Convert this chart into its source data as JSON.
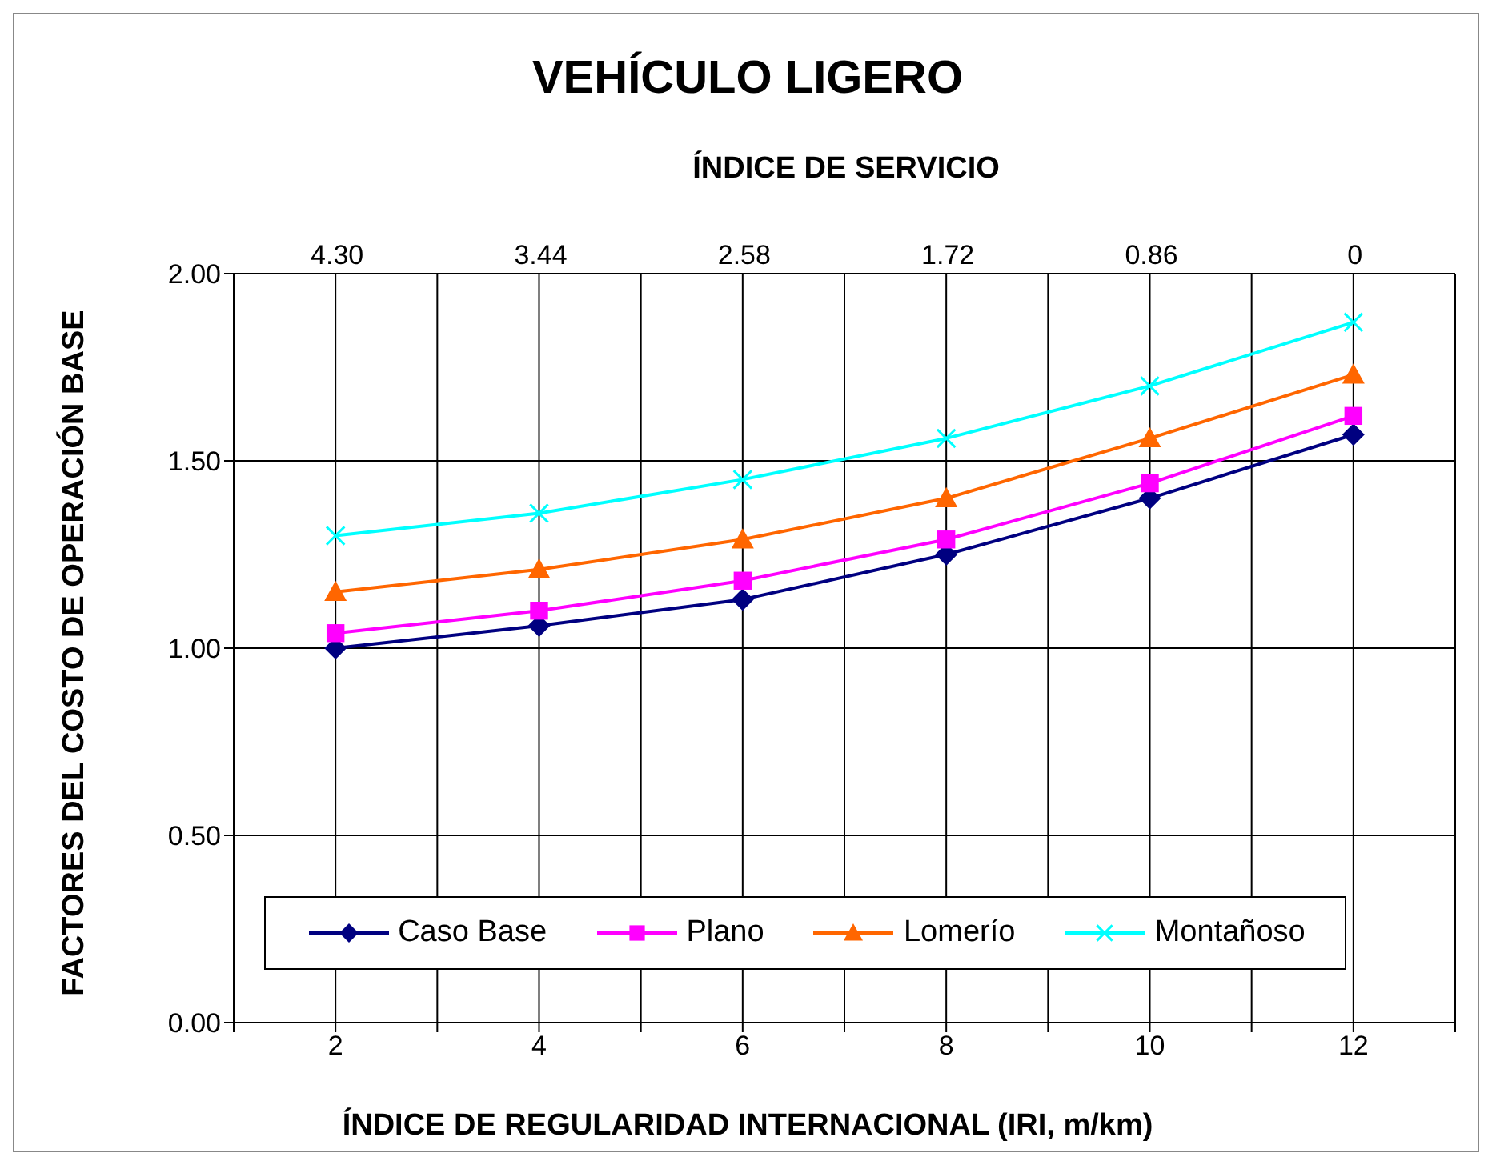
{
  "chart_data": {
    "type": "line",
    "title": "VEHÍCULO LIGERO",
    "xlabel": "ÍNDICE DE REGULARIDAD INTERNACIONAL (IRI, m/km)",
    "ylabel": "FACTORES DEL COSTO DE OPERACIÓN BASE",
    "x2label": "ÍNDICE DE SERVICIO",
    "x": [
      2,
      4,
      6,
      8,
      10,
      12
    ],
    "series": [
      {
        "name": "Caso Base",
        "color": "#000080",
        "marker": "diamond",
        "values": [
          1.0,
          1.06,
          1.13,
          1.25,
          1.4,
          1.57
        ]
      },
      {
        "name": "Plano",
        "color": "#ff00ff",
        "marker": "square",
        "values": [
          1.04,
          1.1,
          1.18,
          1.29,
          1.44,
          1.62
        ]
      },
      {
        "name": "Lomerío",
        "color": "#ff6600",
        "marker": "triangle",
        "values": [
          1.15,
          1.21,
          1.29,
          1.4,
          1.56,
          1.73
        ]
      },
      {
        "name": "Montañoso",
        "color": "#00ffff",
        "marker": "cross",
        "values": [
          1.3,
          1.36,
          1.45,
          1.56,
          1.7,
          1.87
        ]
      }
    ],
    "xlim": [
      1,
      13
    ],
    "xticks": [
      {
        "value": 1,
        "label": null
      },
      2,
      {
        "value": 3,
        "label": null
      },
      4,
      {
        "value": 5,
        "label": null
      },
      6,
      {
        "value": 7,
        "label": null
      },
      8,
      {
        "value": 9,
        "label": null
      },
      10,
      {
        "value": 11,
        "label": null
      },
      12,
      {
        "value": 13,
        "label": null
      }
    ],
    "x2lim": [
      4.73,
      -0.43
    ],
    "x2ticks": [
      {
        "value": 4.3,
        "label": "4.30"
      },
      {
        "value": 3.44,
        "label": "3.44"
      },
      {
        "value": 2.58,
        "label": "2.58"
      },
      {
        "value": 1.72,
        "label": "1.72"
      },
      {
        "value": 0.86,
        "label": "0.86"
      },
      0
    ],
    "ylim": [
      0,
      2
    ],
    "yticks": [
      {
        "value": 0,
        "label": "0.00"
      },
      {
        "value": 0.5,
        "label": "0.50"
      },
      {
        "value": 1,
        "label": "1.00"
      },
      {
        "value": 1.5,
        "label": "1.50"
      },
      {
        "value": 2,
        "label": "2.00"
      }
    ],
    "grid": true,
    "legend": "bottom",
    "line_style": "solid"
  }
}
